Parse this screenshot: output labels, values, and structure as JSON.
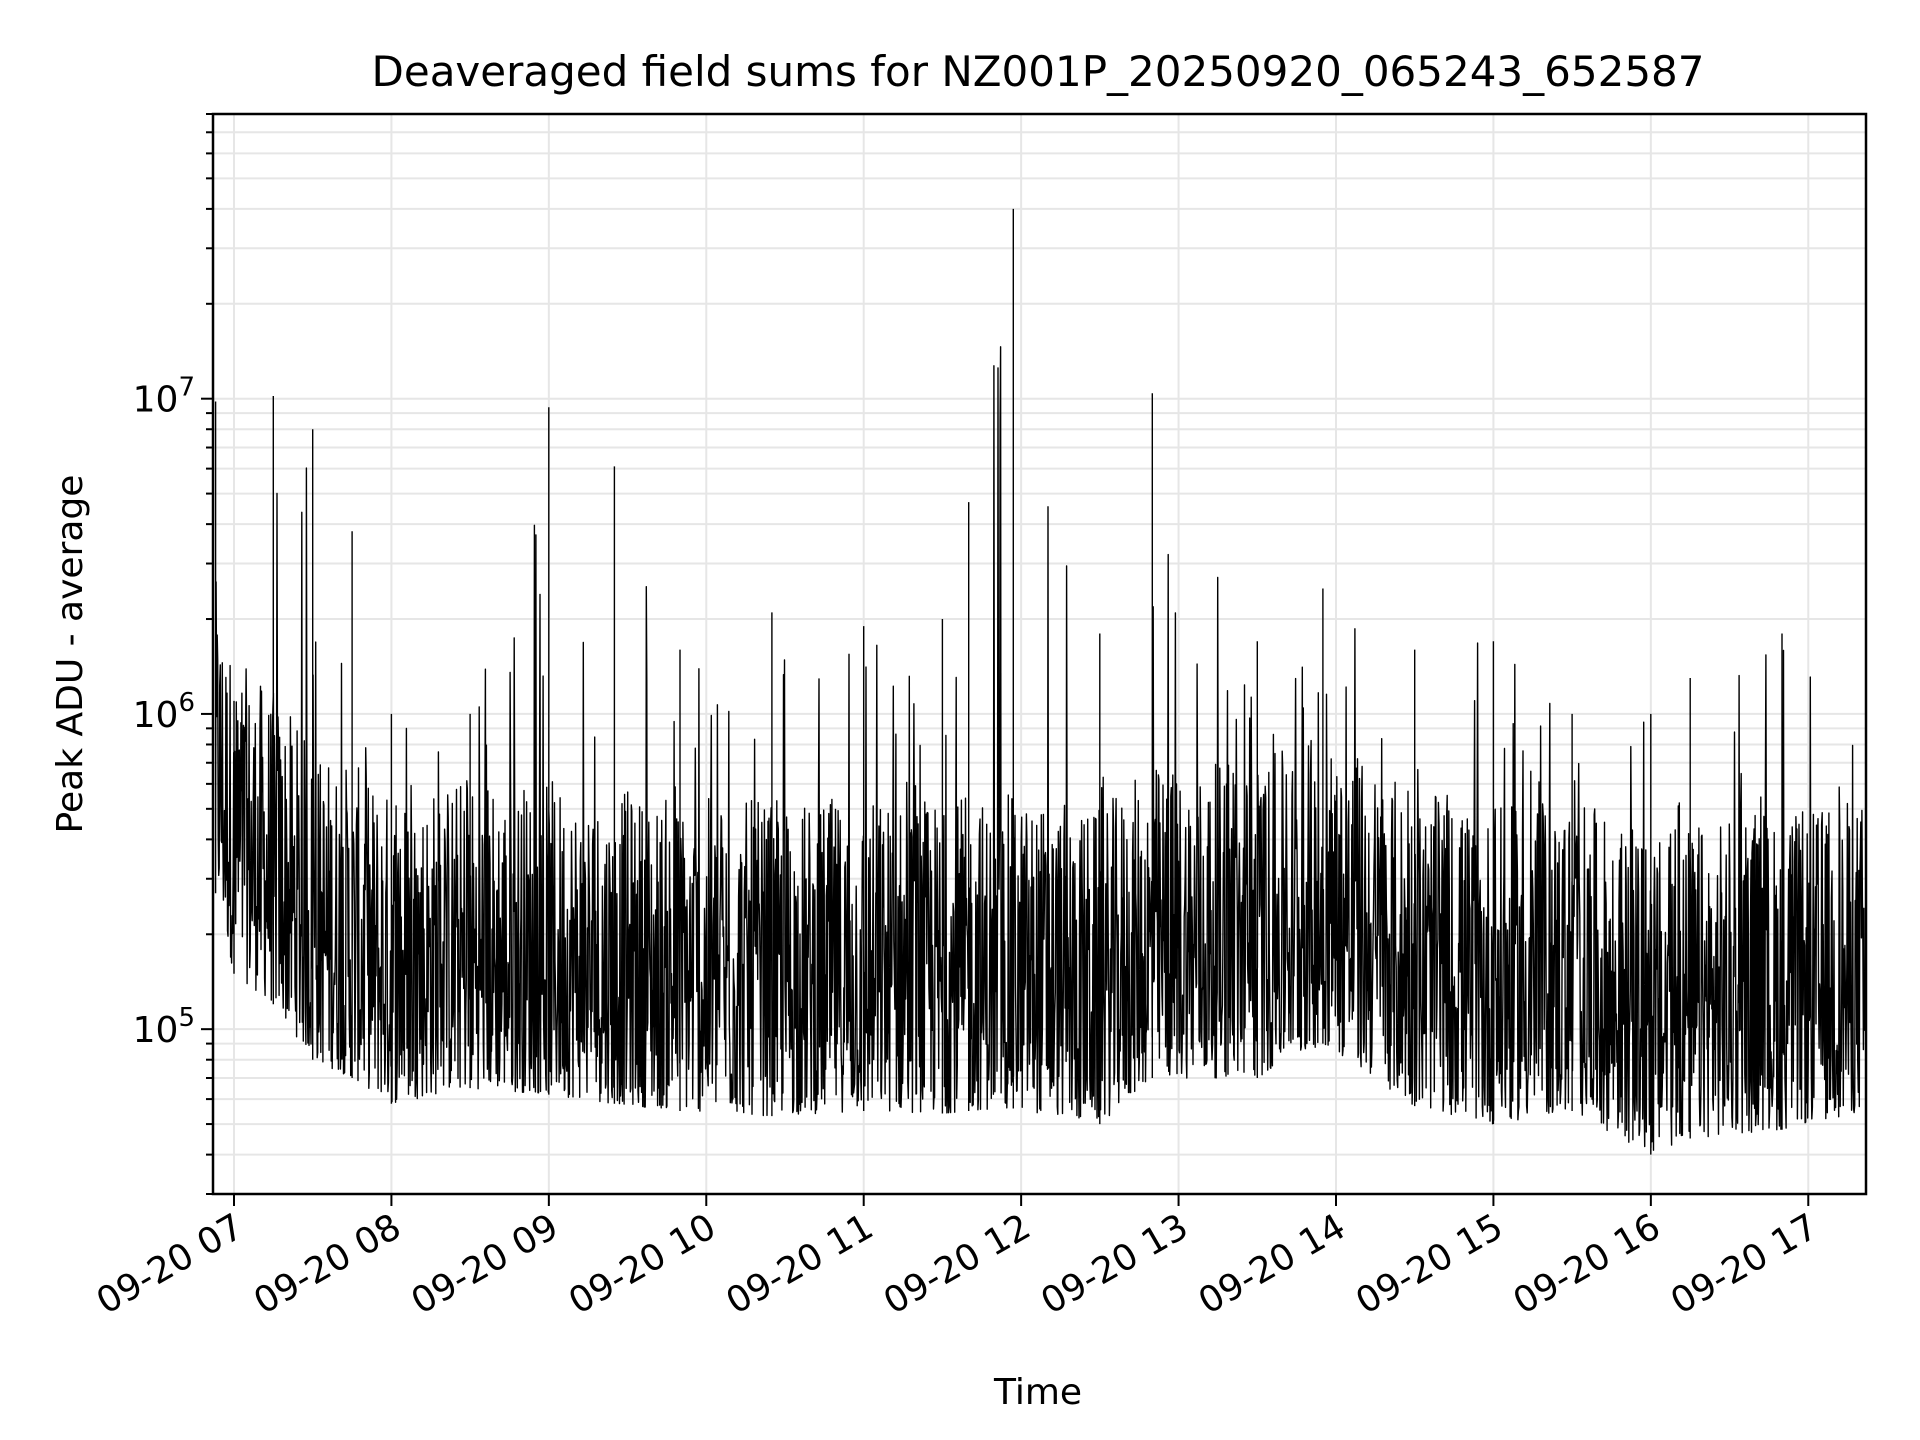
{
  "chart_data": {
    "type": "line",
    "title": "Deaveraged field sums for NZ001P_20250920_065243_652587",
    "xlabel": "Time",
    "ylabel": "Peak ADU - average",
    "yscale": "log",
    "grid": true,
    "legend": "none",
    "series_color": "#000000",
    "grid_color": "#e6e6e6",
    "xlim": [
      "2025-09-20 06:52",
      "2025-09-20 17:22"
    ],
    "ylim": [
      30000,
      80000000
    ],
    "x_ticks": [
      {
        "time": "2025-09-20 07:00",
        "label": "09-20 07"
      },
      {
        "time": "2025-09-20 08:00",
        "label": "09-20 08"
      },
      {
        "time": "2025-09-20 09:00",
        "label": "09-20 09"
      },
      {
        "time": "2025-09-20 10:00",
        "label": "09-20 10"
      },
      {
        "time": "2025-09-20 11:00",
        "label": "09-20 11"
      },
      {
        "time": "2025-09-20 12:00",
        "label": "09-20 12"
      },
      {
        "time": "2025-09-20 13:00",
        "label": "09-20 13"
      },
      {
        "time": "2025-09-20 14:00",
        "label": "09-20 14"
      },
      {
        "time": "2025-09-20 15:00",
        "label": "09-20 15"
      },
      {
        "time": "2025-09-20 16:00",
        "label": "09-20 16"
      },
      {
        "time": "2025-09-20 17:00",
        "label": "09-20 17"
      }
    ],
    "y_ticks": [
      {
        "value": 100000,
        "base": "10",
        "exp": "5"
      },
      {
        "value": 1000000,
        "base": "10",
        "exp": "6"
      },
      {
        "value": 10000000,
        "base": "10",
        "exp": "7"
      }
    ],
    "series": [
      {
        "envelope": [
          {
            "time": "2025-09-20 06:53",
            "low": 270000,
            "high": 9800000
          },
          {
            "time": "2025-09-20 07:00",
            "low": 150000,
            "high": 1100000
          },
          {
            "time": "2025-09-20 07:15",
            "low": 120000,
            "high": 10200000
          },
          {
            "time": "2025-09-20 07:30",
            "low": 80000,
            "high": 8000000
          },
          {
            "time": "2025-09-20 07:45",
            "low": 70000,
            "high": 3800000
          },
          {
            "time": "2025-09-20 08:00",
            "low": 58000,
            "high": 1000000
          },
          {
            "time": "2025-09-20 08:30",
            "low": 65000,
            "high": 1000000
          },
          {
            "time": "2025-09-20 09:00",
            "low": 62000,
            "high": 9400000
          },
          {
            "time": "2025-09-20 09:25",
            "low": 58000,
            "high": 6100000
          },
          {
            "time": "2025-09-20 09:50",
            "low": 55000,
            "high": 1600000
          },
          {
            "time": "2025-09-20 10:25",
            "low": 53000,
            "high": 2100000
          },
          {
            "time": "2025-09-20 11:00",
            "low": 55000,
            "high": 1900000
          },
          {
            "time": "2025-09-20 11:30",
            "low": 54000,
            "high": 2000000
          },
          {
            "time": "2025-09-20 11:40",
            "low": 55000,
            "high": 4700000
          },
          {
            "time": "2025-09-20 11:57",
            "low": 56000,
            "high": 40000000
          },
          {
            "time": "2025-09-20 12:30",
            "low": 50000,
            "high": 1800000
          },
          {
            "time": "2025-09-20 12:50",
            "low": 70000,
            "high": 10400000
          },
          {
            "time": "2025-09-20 13:30",
            "low": 70000,
            "high": 1700000
          },
          {
            "time": "2025-09-20 13:55",
            "low": 90000,
            "high": 2500000
          },
          {
            "time": "2025-09-20 14:30",
            "low": 57000,
            "high": 1600000
          },
          {
            "time": "2025-09-20 15:00",
            "low": 50000,
            "high": 1700000
          },
          {
            "time": "2025-09-20 15:30",
            "low": 55000,
            "high": 1000000
          },
          {
            "time": "2025-09-20 16:00",
            "low": 40000,
            "high": 1000000
          },
          {
            "time": "2025-09-20 16:15",
            "low": 45000,
            "high": 1300000
          },
          {
            "time": "2025-09-20 16:50",
            "low": 48000,
            "high": 1800000
          },
          {
            "time": "2025-09-20 17:22",
            "low": 55000,
            "high": 800000
          }
        ]
      }
    ]
  }
}
